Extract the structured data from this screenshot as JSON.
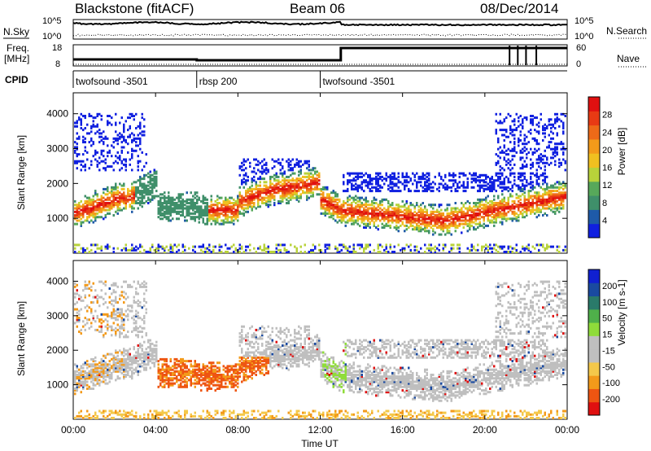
{
  "header": {
    "station": "Blackstone (fitACF)",
    "beam": "Beam 06",
    "date": "08/Dec/2014"
  },
  "left_labels": {
    "nsky": "N.Sky",
    "freq_line1": "Freq.",
    "freq_line2": "[MHz]",
    "cpid": "CPID"
  },
  "right_labels": {
    "nsearch": "N.Search",
    "nave": "Nave"
  },
  "noise_panel": {
    "y_ticks": [
      "10^5",
      "10^0"
    ],
    "right_ticks": [
      "10^5",
      "10^0"
    ]
  },
  "freq_panel": {
    "y_ticks": [
      "18",
      "8"
    ],
    "right_ticks": [
      "60",
      "0"
    ]
  },
  "cpid_panel": {
    "programs": [
      {
        "name": "twofsound -3501",
        "start_hour": 0.0
      },
      {
        "name": "rbsp 200",
        "start_hour": 6.0
      },
      {
        "name": "twofsound -3501",
        "start_hour": 12.0
      }
    ]
  },
  "chart_data": [
    {
      "type": "heatmap",
      "title": "",
      "ylabel": "Slant Range [km]",
      "xlabel": "",
      "x_ticks": [
        "00:00",
        "04:00",
        "08:00",
        "12:00",
        "16:00",
        "20:00",
        "00:00"
      ],
      "y_ticks": [
        "1000",
        "2000",
        "3000",
        "4000"
      ],
      "ylim": [
        0,
        4600
      ],
      "xlim": [
        0,
        24
      ],
      "colorbar": {
        "label": "Power [dB]",
        "ticks": [
          "4",
          "8",
          "12",
          "16",
          "20",
          "24",
          "28"
        ],
        "range": [
          0,
          30
        ],
        "colors": [
          "#1020e0",
          "#1e5aa8",
          "#3f8f6a",
          "#57a85a",
          "#b8d23a",
          "#f0c020",
          "#f39a1a",
          "#ee6a18",
          "#e83a14",
          "#e01010"
        ]
      }
    },
    {
      "type": "heatmap",
      "title": "",
      "ylabel": "Slant Range [km]",
      "xlabel": "Time UT",
      "x_ticks": [
        "00:00",
        "04:00",
        "08:00",
        "12:00",
        "16:00",
        "20:00",
        "00:00"
      ],
      "y_ticks": [
        "1000",
        "2000",
        "3000",
        "4000"
      ],
      "ylim": [
        0,
        4600
      ],
      "xlim": [
        0,
        24
      ],
      "colorbar": {
        "label": "Velocity [m s-1]",
        "ticks": [
          "200",
          "100",
          "50",
          "15",
          "-15",
          "-50",
          "-100",
          "-200"
        ],
        "range": [
          -250,
          250
        ],
        "colors": [
          "#e01010",
          "#ee5512",
          "#f39a1a",
          "#f4c84a",
          "#bfbfbf",
          "#bfbfbf",
          "#8fdc3a",
          "#4fb04a",
          "#2a7a6a",
          "#1a4aa0",
          "#1020d0"
        ]
      }
    }
  ]
}
